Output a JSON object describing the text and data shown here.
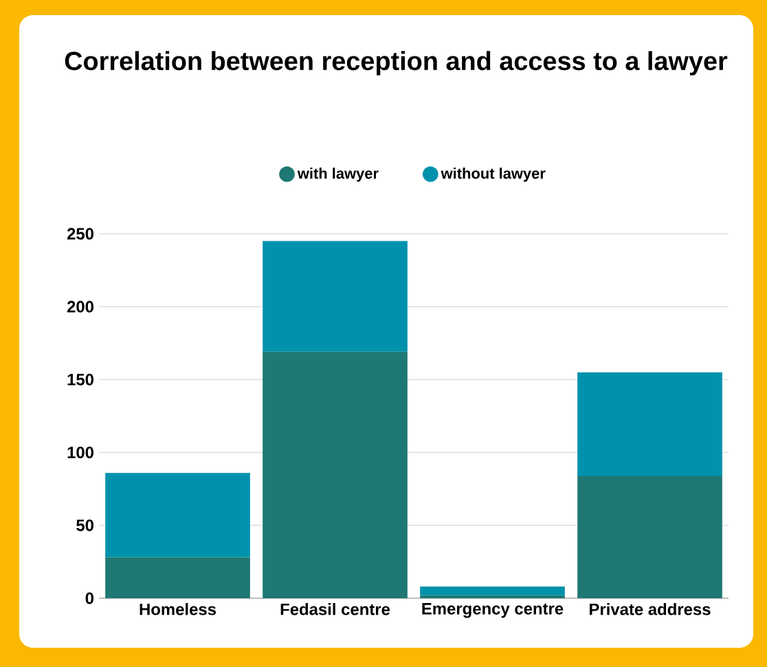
{
  "chart_data": {
    "type": "bar",
    "title": "Correlation between reception and access to a lawyer",
    "categories": [
      "Homeless",
      "Fedasil centre",
      "Emergency centre",
      "Private address"
    ],
    "series": [
      {
        "name": "with lawyer",
        "color": "#1f7873",
        "values": [
          28,
          169,
          2,
          84
        ]
      },
      {
        "name": "without lawyer",
        "color": "#0092ad",
        "values": [
          58,
          76,
          6,
          71
        ]
      }
    ],
    "stacked": true,
    "ylim": [
      0,
      250
    ],
    "yticks": [
      0,
      50,
      100,
      150,
      200,
      250
    ],
    "grid": "y",
    "legend": "top"
  }
}
